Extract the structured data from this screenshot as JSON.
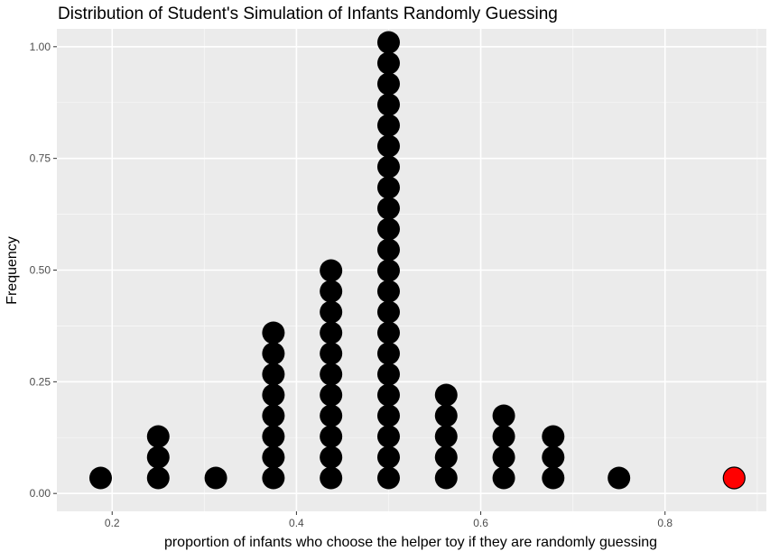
{
  "chart_data": {
    "type": "scatter",
    "subtype": "dotplot",
    "title": "Distribution of Student's Simulation of Infants Randomly Guessing",
    "xlabel": "proportion of infants who choose the helper toy if they are randomly guessing",
    "ylabel": "Frequency",
    "xlim": [
      0.14,
      0.91
    ],
    "ylim": [
      -0.04,
      1.04
    ],
    "x_ticks": [
      "0.2",
      "0.4",
      "0.6",
      "0.8"
    ],
    "y_ticks": [
      "0.00",
      "0.25",
      "0.50",
      "0.75",
      "1.00"
    ],
    "grid": true,
    "background": "#ebebeb",
    "dot_color": "#000000",
    "highlight_color": "#ff0000",
    "stacks": [
      {
        "x": 0.1875,
        "count": 1
      },
      {
        "x": 0.25,
        "count": 3
      },
      {
        "x": 0.3125,
        "count": 1
      },
      {
        "x": 0.375,
        "count": 8
      },
      {
        "x": 0.4375,
        "count": 11
      },
      {
        "x": 0.5,
        "count": 22
      },
      {
        "x": 0.5625,
        "count": 5
      },
      {
        "x": 0.625,
        "count": 4
      },
      {
        "x": 0.6786,
        "count": 3
      },
      {
        "x": 0.75,
        "count": 1
      }
    ],
    "highlight": {
      "x": 0.875,
      "count": 1
    }
  }
}
